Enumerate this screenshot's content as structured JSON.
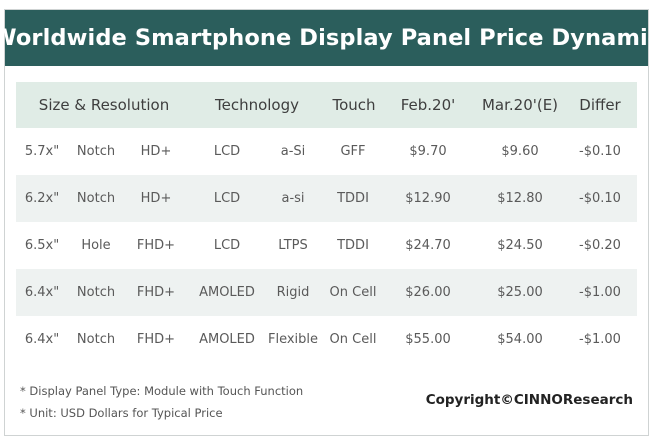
{
  "title": "Worldwide Smartphone Display Panel Price Dynamic",
  "headers": {
    "size_resolution": "Size & Resolution",
    "technology": "Technology",
    "touch": "Touch",
    "feb": "Feb.20'",
    "mar": "Mar.20'(E)",
    "differ": "Differ"
  },
  "rows": [
    {
      "size": "5.7x\"",
      "notch": "Notch",
      "res": "HD+",
      "panel": "LCD",
      "tech": "a-Si",
      "touch": "GFF",
      "feb": "$9.70",
      "mar": "$9.60",
      "diff": "-$0.10"
    },
    {
      "size": "6.2x\"",
      "notch": "Notch",
      "res": "HD+",
      "panel": "LCD",
      "tech": "a-si",
      "touch": "TDDI",
      "feb": "$12.90",
      "mar": "$12.80",
      "diff": "-$0.10"
    },
    {
      "size": "6.5x\"",
      "notch": "Hole",
      "res": "FHD+",
      "panel": "LCD",
      "tech": "LTPS",
      "touch": "TDDI",
      "feb": "$24.70",
      "mar": "$24.50",
      "diff": "-$0.20"
    },
    {
      "size": "6.4x\"",
      "notch": "Notch",
      "res": "FHD+",
      "panel": "AMOLED",
      "tech": "Rigid",
      "touch": "On Cell",
      "feb": "$26.00",
      "mar": "$25.00",
      "diff": "-$1.00"
    },
    {
      "size": "6.4x\"",
      "notch": "Notch",
      "res": "FHD+",
      "panel": "AMOLED",
      "tech": "Flexible",
      "touch": "On Cell",
      "feb": "$55.00",
      "mar": "$54.00",
      "diff": "-$1.00"
    }
  ],
  "notes": [
    "* Display Panel Type:  Module with Touch Function",
    "* Unit:  USD Dollars for Typical Price"
  ],
  "copyright": "Copyright©CINNOResearch",
  "colors": {
    "title_bg": "#2b5e5c",
    "header_bg": "#e0ece6",
    "alt_row_bg": "#eef2f1"
  }
}
